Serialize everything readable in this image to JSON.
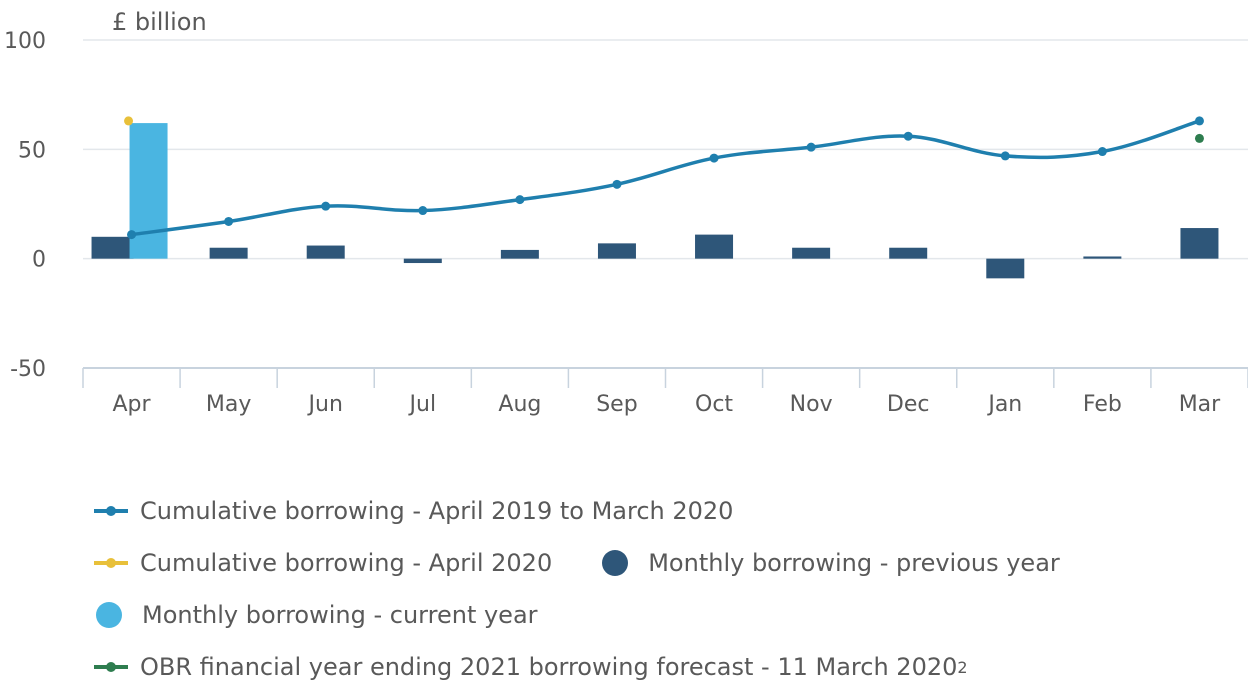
{
  "chart_data": {
    "type": "bar",
    "ylabel": "£ billion",
    "ylim": [
      -50,
      100
    ],
    "yticks": [
      100,
      50,
      0,
      -50
    ],
    "categories": [
      "Apr",
      "May",
      "Jun",
      "Jul",
      "Aug",
      "Sep",
      "Oct",
      "Nov",
      "Dec",
      "Jan",
      "Feb",
      "Mar"
    ],
    "series": [
      {
        "name": "Monthly borrowing - previous year",
        "kind": "bar",
        "color": "#2e5679",
        "values": [
          10,
          5,
          6,
          -2,
          4,
          7,
          11,
          5,
          5,
          -9,
          1,
          14
        ]
      },
      {
        "name": "Monthly borrowing - current year",
        "kind": "bar",
        "color": "#4ab5e1",
        "values": [
          62,
          null,
          null,
          null,
          null,
          null,
          null,
          null,
          null,
          null,
          null,
          null
        ]
      },
      {
        "name": "Cumulative borrowing - April 2019 to March 2020",
        "kind": "line",
        "color": "#1f7fae",
        "values": [
          11,
          17,
          24,
          22,
          27,
          34,
          46,
          51,
          56,
          47,
          49,
          63
        ]
      },
      {
        "name": "Cumulative borrowing - April 2020",
        "kind": "point",
        "color": "#e8c03a",
        "values": [
          63,
          null,
          null,
          null,
          null,
          null,
          null,
          null,
          null,
          null,
          null,
          null
        ]
      },
      {
        "name": "OBR financial year ending 2021 borrowing forecast - 11 March 2020",
        "kind": "point",
        "color": "#2e7d4f",
        "values": [
          null,
          null,
          null,
          null,
          null,
          null,
          null,
          null,
          null,
          null,
          null,
          55
        ]
      }
    ],
    "grid": true,
    "legend_position": "bottom"
  },
  "legend": {
    "cumulative_prev": "Cumulative borrowing - April 2019 to March 2020",
    "cumulative_april": "Cumulative borrowing - April 2020",
    "monthly_prev": "Monthly borrowing - previous year",
    "monthly_current": "Monthly borrowing - current year",
    "obr": "OBR financial year ending 2021 borrowing forecast - 11 March 2020",
    "obr_footnote": "2"
  }
}
